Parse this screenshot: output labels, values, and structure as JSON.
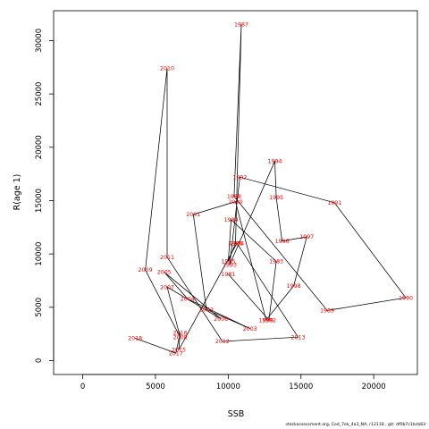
{
  "chart_data": {
    "type": "scatter",
    "title": "",
    "xlabel": "SSB",
    "ylabel": "R(age 1)",
    "xlim": [
      -2000,
      23000
    ],
    "ylim": [
      -1300,
      32800
    ],
    "x_ticks": [
      0,
      5000,
      10000,
      15000,
      20000
    ],
    "y_ticks": [
      0,
      5000,
      10000,
      15000,
      20000,
      25000,
      30000
    ],
    "line_color": "#000000",
    "label_color": "#ff0000",
    "grid": false,
    "points": [
      {
        "year": "1981",
        "ssb": 10000,
        "r": 8100
      },
      {
        "year": "1982",
        "ssb": 12800,
        "r": 3800
      },
      {
        "year": "1983",
        "ssb": 13300,
        "r": 9300
      },
      {
        "year": "1984",
        "ssb": 10200,
        "r": 13200
      },
      {
        "year": "1985",
        "ssb": 10000,
        "r": 9300
      },
      {
        "year": "1986",
        "ssb": 10500,
        "r": 11000
      },
      {
        "year": "1987",
        "ssb": 10900,
        "r": 31500
      },
      {
        "year": "1988",
        "ssb": 10400,
        "r": 15400
      },
      {
        "year": "1989",
        "ssb": 16800,
        "r": 4700
      },
      {
        "year": "1990",
        "ssb": 22200,
        "r": 5900
      },
      {
        "year": "1991",
        "ssb": 17300,
        "r": 14800
      },
      {
        "year": "1992",
        "ssb": 10800,
        "r": 17200
      },
      {
        "year": "1993",
        "ssb": 10100,
        "r": 9000
      },
      {
        "year": "1994",
        "ssb": 13200,
        "r": 18700
      },
      {
        "year": "1995",
        "ssb": 13300,
        "r": 15300
      },
      {
        "year": "1996",
        "ssb": 13700,
        "r": 11200
      },
      {
        "year": "1997",
        "ssb": 15400,
        "r": 11600
      },
      {
        "year": "1998",
        "ssb": 14500,
        "r": 7000
      },
      {
        "year": "1999",
        "ssb": 12600,
        "r": 3800
      },
      {
        "year": "2000",
        "ssb": 10500,
        "r": 14900
      },
      {
        "year": "2001",
        "ssb": 7600,
        "r": 13700
      },
      {
        "year": "2002",
        "ssb": 8500,
        "r": 4800
      },
      {
        "year": "2003",
        "ssb": 11500,
        "r": 3000
      },
      {
        "year": "2004",
        "ssb": 7200,
        "r": 5800
      },
      {
        "year": "2005",
        "ssb": 5600,
        "r": 8300
      },
      {
        "year": "2006",
        "ssb": 9500,
        "r": 3900
      },
      {
        "year": "2007",
        "ssb": 5800,
        "r": 6900
      },
      {
        "year": "2008",
        "ssb": 6700,
        "r": 2200
      },
      {
        "year": "2009",
        "ssb": 4300,
        "r": 8500
      },
      {
        "year": "2010",
        "ssb": 5800,
        "r": 27400
      },
      {
        "year": "2011",
        "ssb": 5800,
        "r": 9700
      },
      {
        "year": "2012",
        "ssb": 9600,
        "r": 1800
      },
      {
        "year": "2013",
        "ssb": 14800,
        "r": 2200
      },
      {
        "year": "2014",
        "ssb": 10600,
        "r": 11000
      },
      {
        "year": "2015",
        "ssb": 6600,
        "r": 1000
      },
      {
        "year": "2016",
        "ssb": 6700,
        "r": 2600
      },
      {
        "year": "2017",
        "ssb": 6400,
        "r": 700
      },
      {
        "year": "2018",
        "ssb": 3600,
        "r": 2100
      }
    ]
  },
  "footer": {
    "text": "stockassessment.org,  Cod_7ek_4a3_NA,  r12118 ,  git: df0b7c1bcb83"
  }
}
